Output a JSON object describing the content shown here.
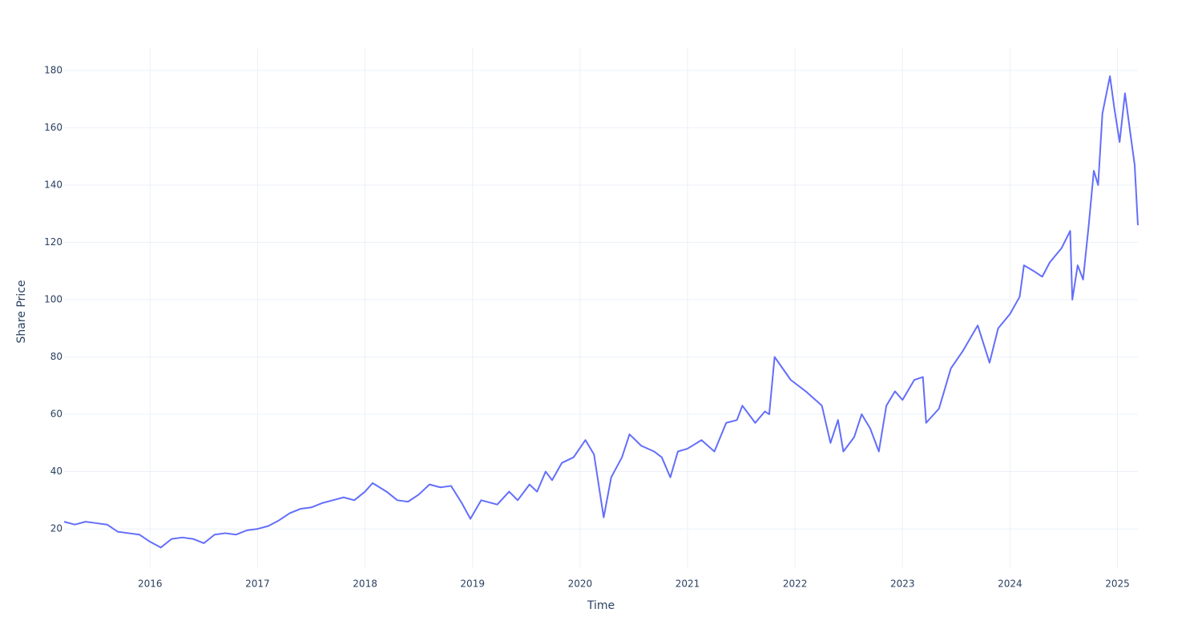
{
  "chart_data": {
    "type": "line",
    "x_label": "Time",
    "y_label": "Share Price",
    "x": [
      2015.2,
      2015.3,
      2015.4,
      2015.5,
      2015.6,
      2015.7,
      2015.8,
      2015.9,
      2016.0,
      2016.1,
      2016.2,
      2016.3,
      2016.4,
      2016.5,
      2016.6,
      2016.7,
      2016.8,
      2016.9,
      2017.0,
      2017.1,
      2017.2,
      2017.3,
      2017.4,
      2017.5,
      2017.6,
      2017.7,
      2017.8,
      2017.9,
      2018.0,
      2018.07,
      2018.2,
      2018.3,
      2018.4,
      2018.5,
      2018.6,
      2018.7,
      2018.8,
      2018.9,
      2018.98,
      2019.08,
      2019.23,
      2019.34,
      2019.42,
      2019.53,
      2019.6,
      2019.68,
      2019.74,
      2019.83,
      2019.94,
      2020.05,
      2020.13,
      2020.22,
      2020.29,
      2020.39,
      2020.46,
      2020.57,
      2020.69,
      2020.76,
      2020.84,
      2020.91,
      2021.0,
      2021.13,
      2021.25,
      2021.36,
      2021.46,
      2021.51,
      2021.63,
      2021.72,
      2021.76,
      2021.81,
      2021.96,
      2022.1,
      2022.25,
      2022.33,
      2022.4,
      2022.45,
      2022.55,
      2022.62,
      2022.7,
      2022.78,
      2022.85,
      2022.93,
      2023.0,
      2023.11,
      2023.19,
      2023.22,
      2023.34,
      2023.45,
      2023.56,
      2023.7,
      2023.81,
      2023.89,
      2024.0,
      2024.09,
      2024.13,
      2024.22,
      2024.3,
      2024.37,
      2024.48,
      2024.56,
      2024.58,
      2024.63,
      2024.68,
      2024.73,
      2024.78,
      2024.82,
      2024.86,
      2024.93,
      2024.97,
      2025.02,
      2025.07,
      2025.12,
      2025.16,
      2025.19
    ],
    "series": [
      {
        "name": "Share Price",
        "color": "#636efa",
        "values": [
          22.5,
          21.5,
          22.5,
          22,
          21.5,
          19,
          18.5,
          18,
          15.5,
          13.5,
          16.5,
          17,
          16.5,
          15,
          18,
          18.5,
          18,
          19.5,
          20,
          21,
          23,
          25.5,
          27,
          27.5,
          29,
          30,
          31,
          30,
          33,
          36,
          33,
          30,
          29.5,
          32,
          35.5,
          34.5,
          35,
          29,
          23.5,
          30,
          28.5,
          33,
          30,
          35.5,
          33,
          40,
          37,
          43,
          45,
          51,
          46,
          24,
          38,
          45,
          53,
          49,
          47,
          45,
          38,
          47,
          48,
          51,
          47,
          57,
          58,
          63,
          57,
          61,
          60,
          80,
          72,
          68,
          63,
          50,
          58,
          47,
          52,
          60,
          55,
          47,
          63,
          68,
          65,
          72,
          73,
          57,
          62,
          76,
          82,
          91,
          78,
          90,
          95,
          101,
          112,
          110,
          108,
          113,
          118,
          124,
          100,
          112,
          107,
          125,
          145,
          140,
          165,
          178,
          167,
          155,
          172,
          158,
          147,
          126
        ]
      }
    ],
    "xlim": [
      2015.2,
      2025.19
    ],
    "ylim": [
      6.6,
      187.8
    ],
    "xticks": [
      2016,
      2017,
      2018,
      2019,
      2020,
      2021,
      2022,
      2023,
      2024,
      2025
    ],
    "yticks": [
      20,
      40,
      60,
      80,
      100,
      120,
      140,
      160,
      180
    ],
    "grid": true
  }
}
